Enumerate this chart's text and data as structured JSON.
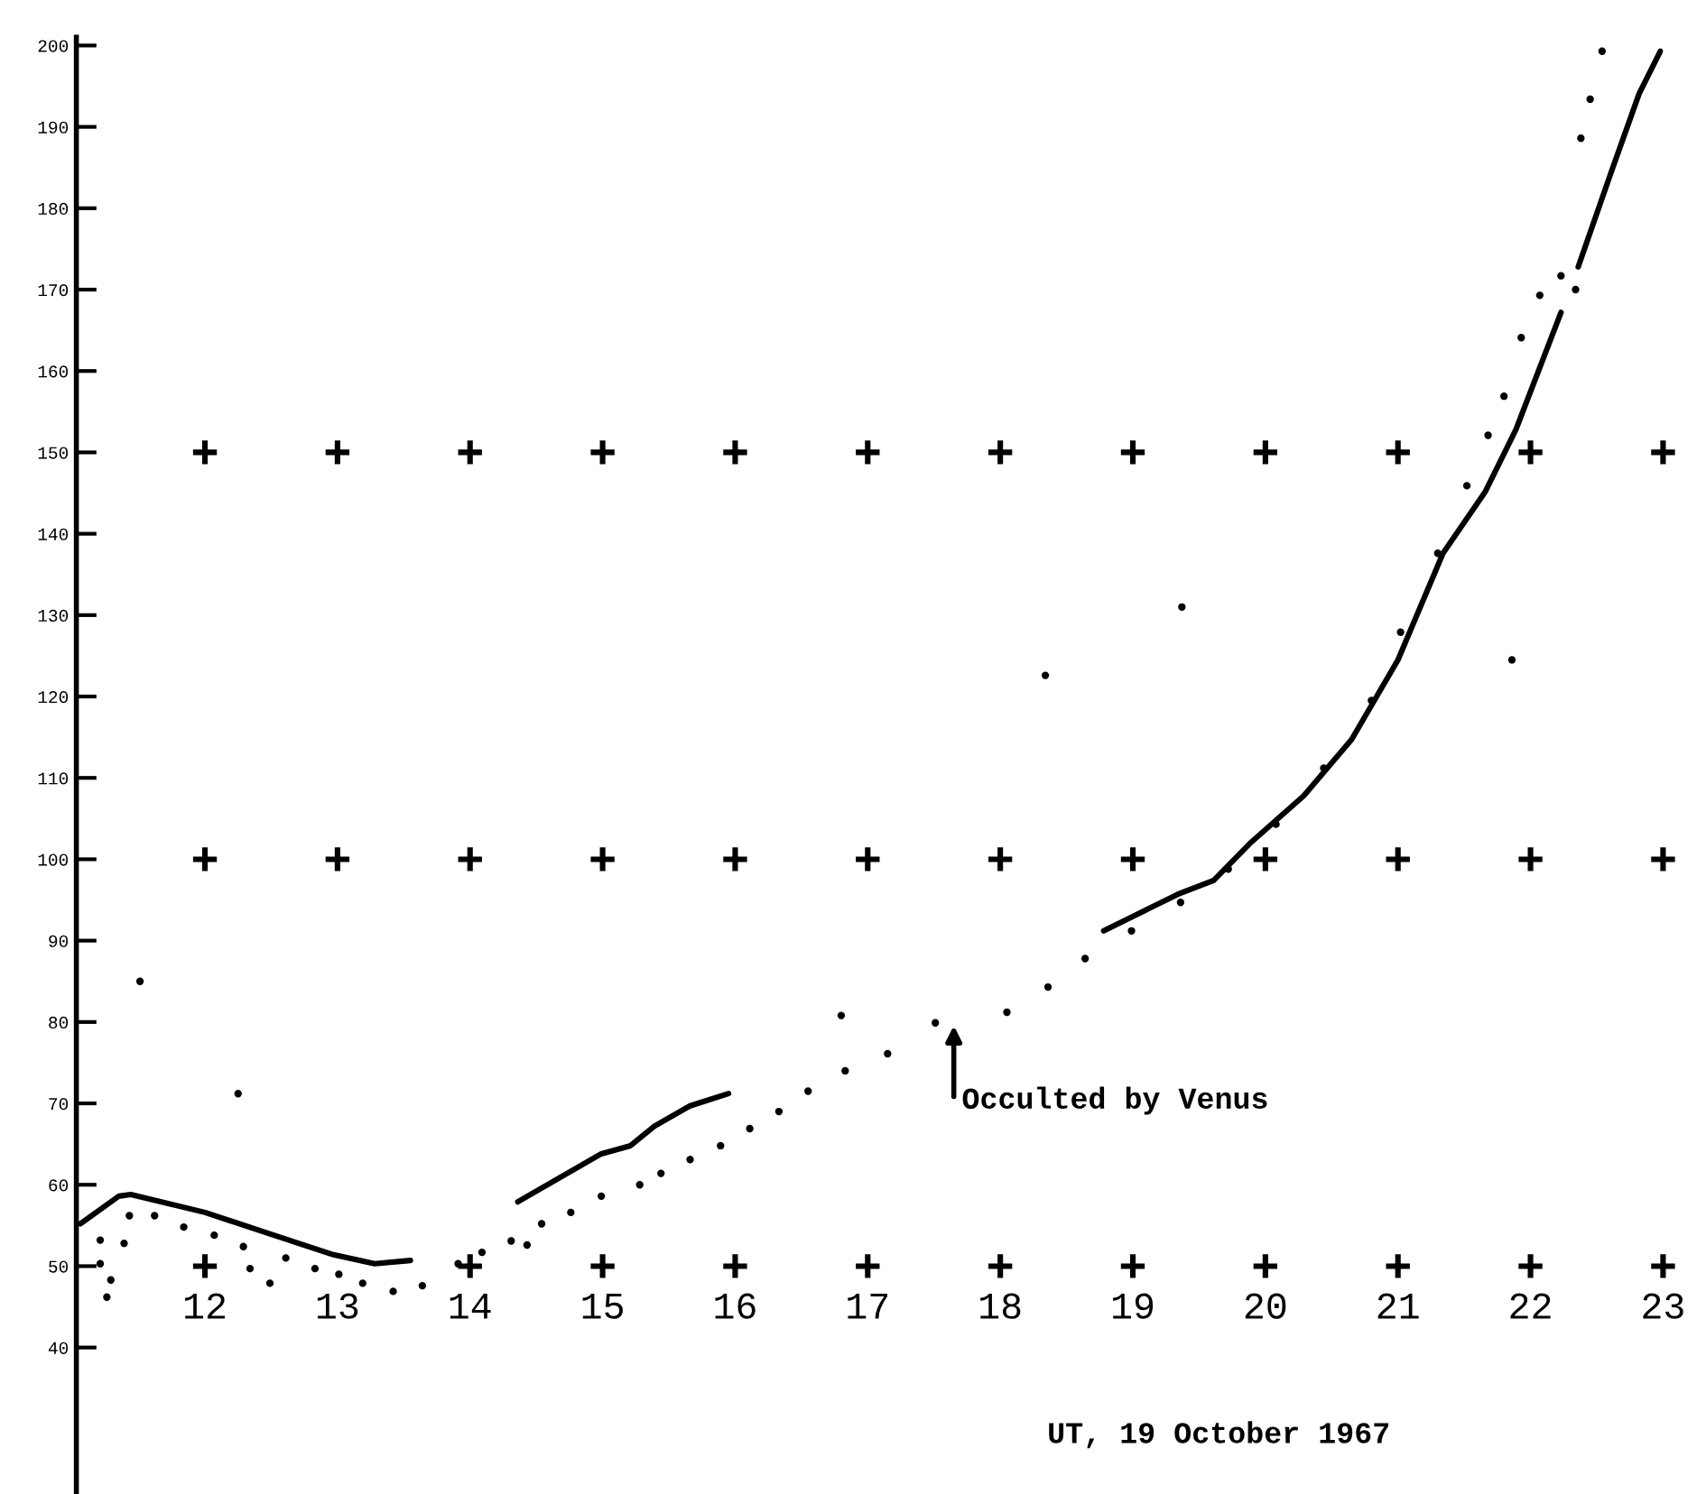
{
  "chart_data": {
    "type": "scatter",
    "xlabel": "UT, 19 October 1967",
    "xlim": [
      11.03,
      23
    ],
    "ylim": [
      22,
      201
    ],
    "xticks": [
      12,
      13,
      14,
      15,
      16,
      17,
      18,
      19,
      20,
      21,
      22,
      23
    ],
    "yticks": [
      40,
      50,
      60,
      70,
      80,
      90,
      100,
      110,
      120,
      130,
      140,
      150,
      160,
      170,
      180,
      190,
      200
    ],
    "grid": false,
    "legend": false,
    "series": [
      {
        "type": "line",
        "color": "#000000",
        "line_style": "solid",
        "marker": "none",
        "x": [
          11.06,
          11.35,
          11.44,
          12.0,
          12.52,
          12.97,
          13.28,
          13.55,
          13.56,
          14.36,
          14.99,
          15.21,
          15.39,
          15.66,
          15.95,
          15.96,
          18.78,
          19.34,
          19.61,
          19.88,
          20.29,
          20.65,
          21.0,
          21.34,
          21.66,
          21.89,
          22.23,
          22.24,
          22.36,
          22.61,
          22.82,
          22.98
        ],
        "values": [
          55.2,
          58.6,
          58.8,
          56.6,
          53.8,
          51.4,
          50.3,
          50.7,
          null,
          57.9,
          63.8,
          64.8,
          67.2,
          69.7,
          71.2,
          null,
          91.2,
          95.7,
          97.4,
          101.9,
          107.8,
          114.7,
          124.5,
          137.6,
          145.2,
          152.8,
          167.2,
          null,
          172.8,
          184.5,
          194.1,
          199.3
        ]
      },
      {
        "color": "#000000",
        "marker": "circle",
        "x": [
          11.21,
          11.21,
          11.29,
          11.26,
          11.39,
          11.43,
          11.51,
          12.25,
          11.62,
          11.84,
          12.07,
          12.29,
          12.34,
          12.49,
          12.61,
          12.83,
          13.01,
          13.19,
          13.42,
          13.64,
          13.91,
          14.09,
          14.31,
          14.43,
          14.54,
          14.76,
          14.99,
          15.28,
          15.44,
          15.66,
          15.89,
          16.11,
          16.33,
          16.55,
          16.8,
          16.83,
          17.15,
          17.51,
          18.05,
          18.36,
          18.64,
          18.99,
          19.36,
          19.72,
          20.08,
          20.44,
          20.8,
          18.34,
          21.86,
          19.37,
          21.02,
          21.3,
          21.52,
          21.68,
          21.8,
          21.93,
          22.07,
          22.23,
          22.34,
          22.38,
          22.45,
          22.54
        ],
        "values": [
          53.2,
          50.3,
          48.3,
          46.2,
          52.8,
          56.2,
          85.0,
          71.2,
          56.2,
          54.8,
          53.8,
          52.4,
          49.7,
          47.9,
          51.0,
          49.7,
          49.0,
          47.9,
          46.9,
          47.6,
          50.3,
          51.7,
          53.1,
          52.6,
          55.2,
          56.6,
          58.6,
          60.0,
          61.4,
          63.1,
          64.8,
          66.9,
          69.0,
          71.5,
          80.8,
          74.0,
          76.1,
          79.9,
          81.2,
          84.3,
          87.8,
          91.2,
          94.7,
          98.8,
          104.3,
          111.2,
          119.5,
          122.6,
          124.5,
          131.0,
          127.9,
          137.6,
          145.9,
          152.1,
          156.9,
          164.1,
          169.3,
          171.7,
          170.0,
          188.6,
          193.4,
          199.3
        ]
      },
      {
        "color": "#000000",
        "marker": "cross",
        "x": [
          12,
          13,
          14,
          15,
          16,
          17,
          18,
          19,
          20,
          21,
          22,
          23,
          12,
          13,
          14,
          15,
          16,
          17,
          18,
          19,
          20,
          21,
          22,
          23,
          12,
          13,
          14,
          15,
          16,
          17,
          18,
          19,
          20,
          21,
          22,
          23
        ],
        "values": [
          150,
          150,
          150,
          150,
          150,
          150,
          150,
          150,
          150,
          150,
          150,
          150,
          100,
          100,
          100,
          100,
          100,
          100,
          100,
          100,
          100,
          100,
          100,
          100,
          50,
          null,
          50,
          50,
          50,
          50,
          50,
          50,
          50,
          50,
          50,
          50
        ]
      }
    ],
    "annotations": [
      "Occulted by Venus"
    ]
  }
}
